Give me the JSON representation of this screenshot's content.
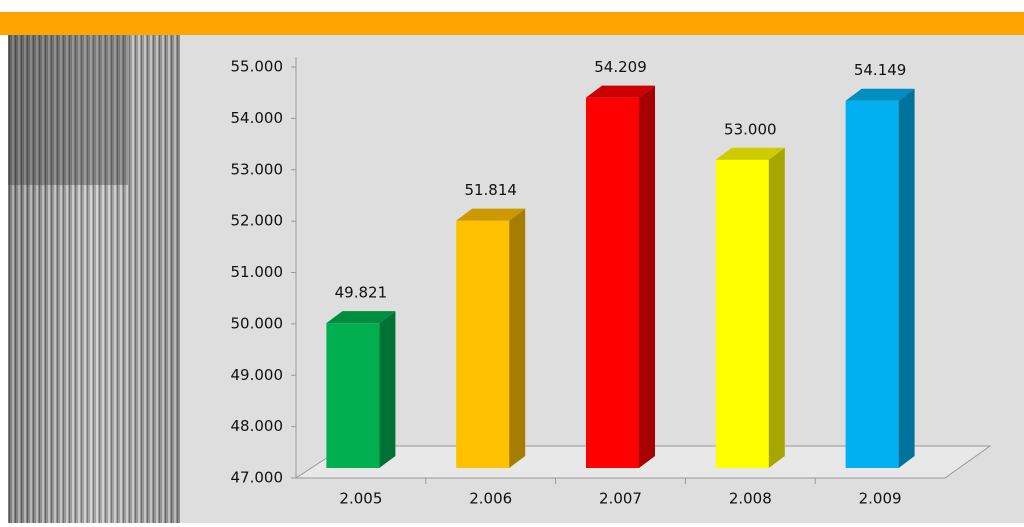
{
  "chart_data": {
    "type": "bar3d",
    "categories": [
      "2.005",
      "2.006",
      "2.007",
      "2.008",
      "2.009"
    ],
    "values": [
      49821,
      51814,
      54209,
      53000,
      54149
    ],
    "value_labels": [
      "49.821",
      "51.814",
      "54.209",
      "53.000",
      "54.149"
    ],
    "colors": [
      "#00b050",
      "#ffc000",
      "#ff0000",
      "#ffff00",
      "#00b0f0"
    ],
    "ylim": [
      47000,
      55000
    ],
    "yticks": [
      {
        "value": 47000,
        "label": "47.000"
      },
      {
        "value": 48000,
        "label": "48.000"
      },
      {
        "value": 49000,
        "label": "49.000"
      },
      {
        "value": 50000,
        "label": "50.000"
      },
      {
        "value": 51000,
        "label": "51.000"
      },
      {
        "value": 52000,
        "label": "52.000"
      },
      {
        "value": 53000,
        "label": "53.000"
      },
      {
        "value": 54000,
        "label": "54.000"
      },
      {
        "value": 55000,
        "label": "55.000"
      }
    ]
  }
}
